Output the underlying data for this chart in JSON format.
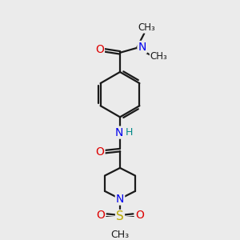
{
  "background_color": "#ebebeb",
  "bond_color": "#1a1a1a",
  "oxygen_color": "#dd0000",
  "nitrogen_color": "#0000ee",
  "sulfur_color": "#bbaa00",
  "hydrogen_color": "#008888",
  "line_width": 1.6,
  "figsize": [
    3.0,
    3.0
  ],
  "dpi": 100,
  "xlim": [
    0,
    10
  ],
  "ylim": [
    0,
    10
  ]
}
